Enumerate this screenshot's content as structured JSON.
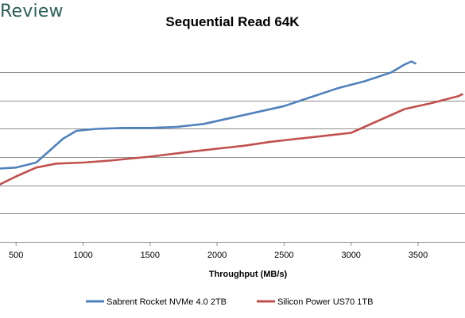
{
  "brand": {
    "logo_text": "Review"
  },
  "chart_data": {
    "type": "line",
    "title": "Sequential Read 64K",
    "xlabel": "Throughput (MB/s)",
    "ylabel": "",
    "xlim": [
      380,
      3850
    ],
    "x_ticks": [
      500,
      1000,
      1500,
      2000,
      2500,
      3000,
      3500
    ],
    "grid": true,
    "legend_position": "bottom",
    "series": [
      {
        "name": "Sabrent Rocket NVMe 4.0 2TB",
        "color": "#4f81bd",
        "points": [
          [
            380,
            0.37
          ],
          [
            500,
            0.375
          ],
          [
            650,
            0.4
          ],
          [
            750,
            0.46
          ],
          [
            850,
            0.52
          ],
          [
            950,
            0.56
          ],
          [
            1100,
            0.57
          ],
          [
            1300,
            0.575
          ],
          [
            1500,
            0.575
          ],
          [
            1700,
            0.58
          ],
          [
            1900,
            0.595
          ],
          [
            2100,
            0.625
          ],
          [
            2300,
            0.655
          ],
          [
            2500,
            0.685
          ],
          [
            2700,
            0.73
          ],
          [
            2900,
            0.775
          ],
          [
            3100,
            0.81
          ],
          [
            3300,
            0.855
          ],
          [
            3400,
            0.895
          ],
          [
            3450,
            0.91
          ],
          [
            3480,
            0.9
          ]
        ]
      },
      {
        "name": "Silicon Power US70 1TB",
        "color": "#c0504d",
        "points": [
          [
            380,
            0.29
          ],
          [
            500,
            0.33
          ],
          [
            650,
            0.375
          ],
          [
            800,
            0.395
          ],
          [
            1000,
            0.4
          ],
          [
            1200,
            0.41
          ],
          [
            1500,
            0.43
          ],
          [
            1800,
            0.455
          ],
          [
            2000,
            0.47
          ],
          [
            2200,
            0.485
          ],
          [
            2400,
            0.505
          ],
          [
            2600,
            0.52
          ],
          [
            2800,
            0.535
          ],
          [
            3000,
            0.55
          ],
          [
            3200,
            0.61
          ],
          [
            3400,
            0.67
          ],
          [
            3600,
            0.7
          ],
          [
            3800,
            0.735
          ],
          [
            3830,
            0.745
          ]
        ]
      }
    ]
  }
}
